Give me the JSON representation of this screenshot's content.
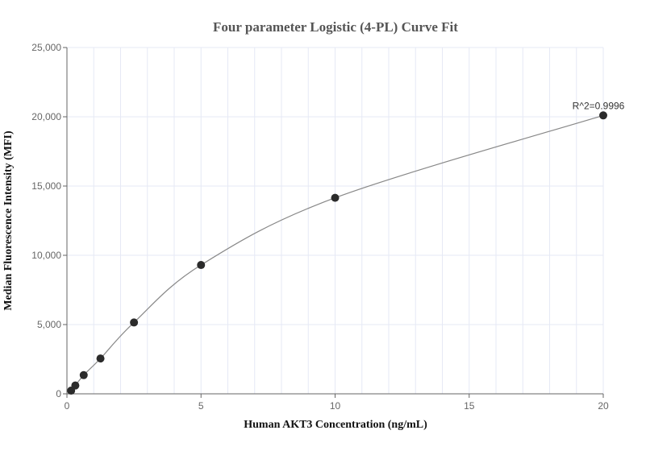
{
  "chart_data": {
    "type": "scatter",
    "title": "Four parameter Logistic (4-PL) Curve Fit",
    "xlabel": "Human AKT3 Concentration (ng/mL)",
    "ylabel": "Median Fluorescence Intensity (MFI)",
    "xlim": [
      0,
      20
    ],
    "ylim": [
      0,
      25000
    ],
    "xticks": [
      0,
      5,
      10,
      15,
      20
    ],
    "xtick_labels": [
      "0",
      "5",
      "10",
      "15",
      "20"
    ],
    "yticks": [
      0,
      5000,
      10000,
      15000,
      20000,
      25000
    ],
    "ytick_labels": [
      "0",
      "5,000",
      "10,000",
      "15,000",
      "20,000",
      "25,000"
    ],
    "grid": true,
    "points": {
      "x": [
        0.156,
        0.3125,
        0.625,
        1.25,
        2.5,
        5,
        10,
        20
      ],
      "y": [
        230,
        600,
        1350,
        2550,
        5150,
        9300,
        14150,
        20100
      ]
    },
    "fit": "4-PL curve",
    "annotation": "R^2=0.9996",
    "colors": {
      "points": "#2b2b2b",
      "curve": "#888888",
      "grid": "#e6e9f5",
      "axis": "#666666"
    }
  }
}
